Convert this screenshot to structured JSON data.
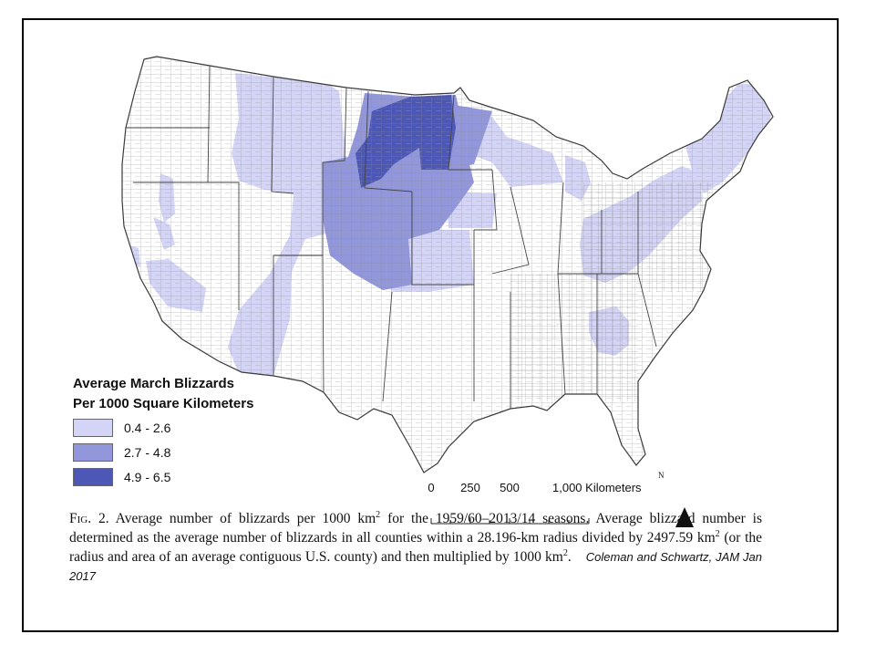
{
  "legend": {
    "title_line1": "Average March Blizzards",
    "title_line2": "Per 1000 Square Kilometers",
    "classes": [
      {
        "label": "0.4 - 2.6",
        "color": "#d3d4f6"
      },
      {
        "label": "2.7 - 4.8",
        "color": "#9297dc"
      },
      {
        "label": "4.9 - 6.5",
        "color": "#4d57b5"
      }
    ]
  },
  "scale_bar": {
    "ticks": [
      {
        "label": "0"
      },
      {
        "label": "250"
      },
      {
        "label": "500"
      },
      {
        "label": "1,000 Kilometers"
      }
    ]
  },
  "north_arrow": {
    "label": "N"
  },
  "caption": {
    "fig_label": "Fig. 2.",
    "part1": " Average number of blizzards per 1000 km",
    "sup1": "2",
    "part2": " for the 1959/60–2013/14 seasons. Average blizzard number is determined as the average number of blizzards in all counties within a 28.196-km radius divided by 2497.59 km",
    "sup2": "2",
    "part3": " (or the radius and area of an average contiguous U.S. county) and then multiplied by 1000 km",
    "sup3": "2",
    "part4": "."
  },
  "credit": "Coleman and Schwartz, JAM Jan 2017",
  "map": {
    "base_color": "#ffffff",
    "line_color": "#8a8a8a"
  }
}
